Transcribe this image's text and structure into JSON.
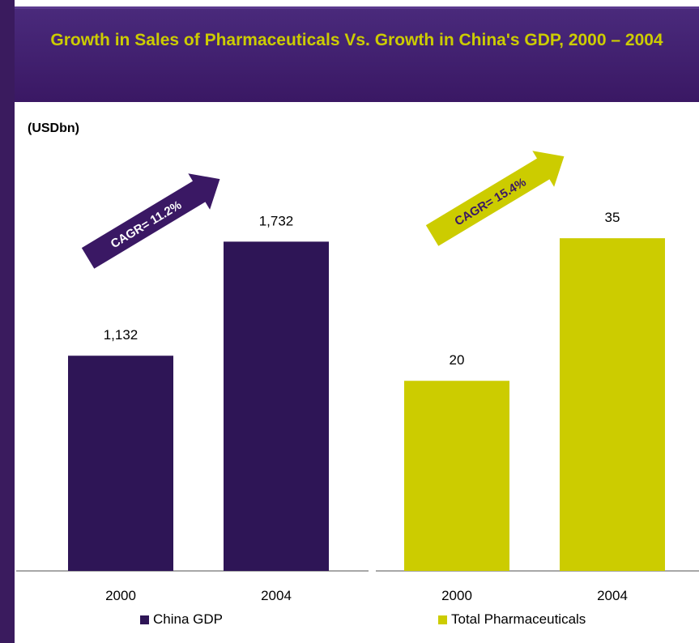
{
  "title": "Growth in Sales of Pharmaceuticals Vs. Growth in China's GDP, 2000 – 2004",
  "unit": "(USDbn)",
  "chart_data": [
    {
      "type": "bar",
      "categories": [
        "2000",
        "2004"
      ],
      "series": [
        {
          "name": "China GDP",
          "values": [
            1132,
            1732
          ],
          "labels": [
            "1,132",
            "1,732"
          ]
        }
      ],
      "color": "#2e1556",
      "annotation": "CAGR= 11.2%",
      "ylim": [
        0,
        2100
      ]
    },
    {
      "type": "bar",
      "categories": [
        "2000",
        "2004"
      ],
      "series": [
        {
          "name": "Total Pharmaceuticals",
          "values": [
            20,
            35
          ],
          "labels": [
            "20",
            "35"
          ]
        }
      ],
      "color": "#cccc00",
      "annotation": "CAGR= 15.4%",
      "ylim": [
        0,
        42
      ]
    }
  ]
}
